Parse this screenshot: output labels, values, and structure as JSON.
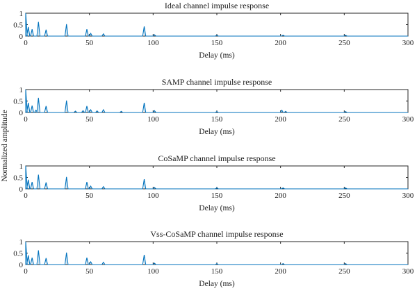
{
  "figure": {
    "ylabel": "Normalized amplitude"
  },
  "colors": {
    "series": "#0072BD",
    "axes": "#262626"
  },
  "chart_data": [
    {
      "type": "line",
      "title": "Ideal channel impulse response",
      "xlabel": "Delay (ms)",
      "ylabel": "Normalized amplitude",
      "xlim": [
        0,
        300
      ],
      "ylim": [
        0,
        1
      ],
      "xticks": [
        0,
        50,
        100,
        150,
        200,
        250,
        300
      ],
      "yticks": [
        0,
        0.5,
        1
      ],
      "grid": false,
      "series": [
        {
          "taps": [
            {
              "x": 0,
              "y": 1.0
            },
            {
              "x": 2,
              "y": 0.4
            },
            {
              "x": 5,
              "y": 0.3
            },
            {
              "x": 10,
              "y": 0.62
            },
            {
              "x": 16,
              "y": 0.28
            },
            {
              "x": 32,
              "y": 0.52
            },
            {
              "x": 48,
              "y": 0.3
            },
            {
              "x": 51,
              "y": 0.12
            },
            {
              "x": 61,
              "y": 0.1
            },
            {
              "x": 93,
              "y": 0.42
            },
            {
              "x": 101,
              "y": 0.06
            },
            {
              "x": 150,
              "y": 0.04
            },
            {
              "x": 202,
              "y": 0.04
            },
            {
              "x": 251,
              "y": 0.04
            }
          ]
        }
      ]
    },
    {
      "type": "line",
      "title": "SAMP channel impulse response",
      "xlabel": "Delay (ms)",
      "ylabel": "Normalized amplitude",
      "xlim": [
        0,
        300
      ],
      "ylim": [
        0,
        1
      ],
      "xticks": [
        0,
        50,
        100,
        150,
        200,
        250,
        300
      ],
      "yticks": [
        0,
        0.5,
        1
      ],
      "grid": false,
      "series": [
        {
          "taps": [
            {
              "x": 0,
              "y": 1.0
            },
            {
              "x": 2,
              "y": 0.42
            },
            {
              "x": 5,
              "y": 0.3
            },
            {
              "x": 8,
              "y": 0.1
            },
            {
              "x": 10,
              "y": 0.64
            },
            {
              "x": 16,
              "y": 0.28
            },
            {
              "x": 32,
              "y": 0.52
            },
            {
              "x": 39,
              "y": 0.06
            },
            {
              "x": 45,
              "y": 0.08
            },
            {
              "x": 48,
              "y": 0.28
            },
            {
              "x": 51,
              "y": 0.12
            },
            {
              "x": 56,
              "y": 0.07
            },
            {
              "x": 61,
              "y": 0.12
            },
            {
              "x": 75,
              "y": 0.05
            },
            {
              "x": 93,
              "y": 0.42
            },
            {
              "x": 101,
              "y": 0.08
            },
            {
              "x": 150,
              "y": 0.04
            },
            {
              "x": 201,
              "y": 0.1
            },
            {
              "x": 204,
              "y": 0.05
            },
            {
              "x": 251,
              "y": 0.04
            }
          ]
        }
      ]
    },
    {
      "type": "line",
      "title": "CoSaMP channel impulse response",
      "xlabel": "Delay (ms)",
      "ylabel": "Normalized amplitude",
      "xlim": [
        0,
        300
      ],
      "ylim": [
        0,
        1
      ],
      "xticks": [
        0,
        50,
        100,
        150,
        200,
        250,
        300
      ],
      "yticks": [
        0,
        0.5,
        1
      ],
      "grid": false,
      "series": [
        {
          "taps": [
            {
              "x": 0,
              "y": 1.0
            },
            {
              "x": 2,
              "y": 0.4
            },
            {
              "x": 5,
              "y": 0.3
            },
            {
              "x": 10,
              "y": 0.62
            },
            {
              "x": 16,
              "y": 0.28
            },
            {
              "x": 32,
              "y": 0.52
            },
            {
              "x": 48,
              "y": 0.3
            },
            {
              "x": 51,
              "y": 0.12
            },
            {
              "x": 61,
              "y": 0.1
            },
            {
              "x": 93,
              "y": 0.42
            },
            {
              "x": 101,
              "y": 0.06
            },
            {
              "x": 150,
              "y": 0.04
            },
            {
              "x": 202,
              "y": 0.04
            },
            {
              "x": 251,
              "y": 0.04
            }
          ]
        }
      ]
    },
    {
      "type": "line",
      "title": "Vss-CoSaMP channel impulse response",
      "xlabel": "Delay (ms)",
      "ylabel": "Normalized amplitude",
      "xlim": [
        0,
        300
      ],
      "ylim": [
        0,
        1
      ],
      "xticks": [
        0,
        50,
        100,
        150,
        200,
        250,
        300
      ],
      "yticks": [
        0,
        0.5,
        1
      ],
      "grid": false,
      "series": [
        {
          "taps": [
            {
              "x": 0,
              "y": 1.0
            },
            {
              "x": 2,
              "y": 0.4
            },
            {
              "x": 5,
              "y": 0.3
            },
            {
              "x": 10,
              "y": 0.62
            },
            {
              "x": 16,
              "y": 0.28
            },
            {
              "x": 32,
              "y": 0.52
            },
            {
              "x": 48,
              "y": 0.3
            },
            {
              "x": 51,
              "y": 0.12
            },
            {
              "x": 61,
              "y": 0.1
            },
            {
              "x": 93,
              "y": 0.42
            },
            {
              "x": 101,
              "y": 0.06
            },
            {
              "x": 150,
              "y": 0.04
            },
            {
              "x": 202,
              "y": 0.04
            },
            {
              "x": 251,
              "y": 0.04
            }
          ]
        }
      ]
    }
  ]
}
